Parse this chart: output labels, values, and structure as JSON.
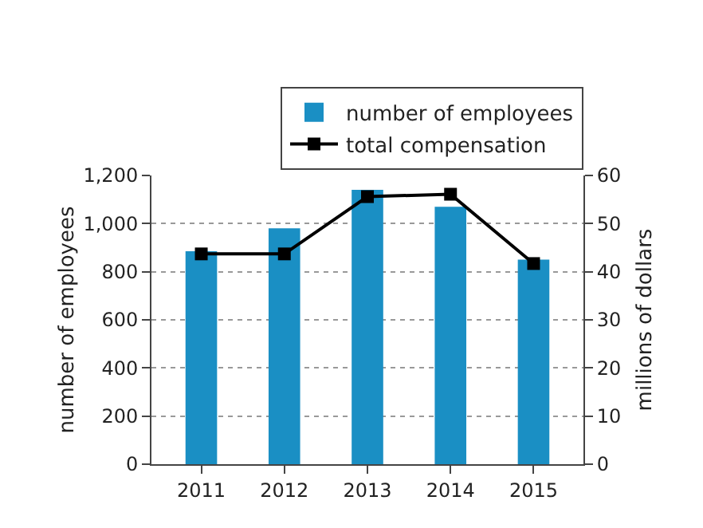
{
  "chart_data": {
    "type": "bar",
    "categories": [
      "2011",
      "2012",
      "2013",
      "2014",
      "2015"
    ],
    "series": [
      {
        "name": "number of employees",
        "color": "#1a8fc4",
        "values": [
          885,
          980,
          1140,
          1070,
          850
        ]
      },
      {
        "name": "total compensation",
        "type": "line",
        "axis": "y2",
        "color": "#000000",
        "marker": "square",
        "values": [
          43.7,
          43.7,
          55.6,
          56.1,
          41.7
        ]
      }
    ],
    "ylabel": "number of employees",
    "y2label": "millions of dollars",
    "ylim": [
      0,
      1200
    ],
    "yticks": [
      0,
      200,
      400,
      600,
      800,
      {
        "value": 1000,
        "label": "1,000"
      },
      {
        "value": 1200,
        "label": "1,200"
      }
    ],
    "y2lim": [
      0,
      60
    ],
    "y2ticks": [
      0,
      10,
      20,
      30,
      40,
      50,
      60
    ],
    "grid": "y",
    "legend": "top right"
  }
}
